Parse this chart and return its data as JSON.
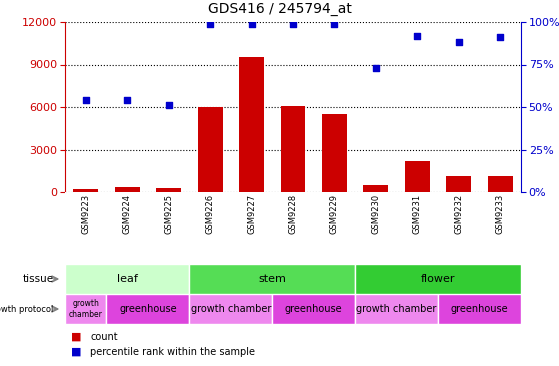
{
  "title": "GDS416 / 245794_at",
  "samples": [
    "GSM9223",
    "GSM9224",
    "GSM9225",
    "GSM9226",
    "GSM9227",
    "GSM9228",
    "GSM9229",
    "GSM9230",
    "GSM9231",
    "GSM9232",
    "GSM9233"
  ],
  "counts": [
    200,
    350,
    280,
    6000,
    9500,
    6100,
    5500,
    500,
    2200,
    1100,
    1150
  ],
  "percentiles": [
    54,
    54,
    51,
    99,
    99,
    99,
    99,
    73,
    92,
    88,
    91
  ],
  "ylim_left": [
    0,
    12000
  ],
  "ylim_right": [
    0,
    100
  ],
  "yticks_left": [
    0,
    3000,
    6000,
    9000,
    12000
  ],
  "yticks_right": [
    0,
    25,
    50,
    75,
    100
  ],
  "bar_color": "#cc0000",
  "dot_color": "#0000cc",
  "tissue_regions": [
    {
      "label": "leaf",
      "start": 0,
      "end": 2,
      "color": "#ccffcc"
    },
    {
      "label": "stem",
      "start": 3,
      "end": 6,
      "color": "#55dd55"
    },
    {
      "label": "flower",
      "start": 7,
      "end": 10,
      "color": "#33cc33"
    }
  ],
  "growth_protocol": [
    {
      "label": "growth\nchamber",
      "start": 0,
      "end": 0,
      "color": "#ee88ee"
    },
    {
      "label": "greenhouse",
      "start": 1,
      "end": 2,
      "color": "#dd44dd"
    },
    {
      "label": "growth chamber",
      "start": 3,
      "end": 4,
      "color": "#ee88ee"
    },
    {
      "label": "greenhouse",
      "start": 5,
      "end": 6,
      "color": "#dd44dd"
    },
    {
      "label": "growth chamber",
      "start": 7,
      "end": 8,
      "color": "#ee88ee"
    },
    {
      "label": "greenhouse",
      "start": 9,
      "end": 10,
      "color": "#dd44dd"
    }
  ],
  "background_color": "#ffffff",
  "grid_color": "#000000",
  "tick_label_color_left": "#cc0000",
  "tick_label_color_right": "#0000cc",
  "label_row_color": "#cccccc",
  "separator_color": "#ffffff"
}
